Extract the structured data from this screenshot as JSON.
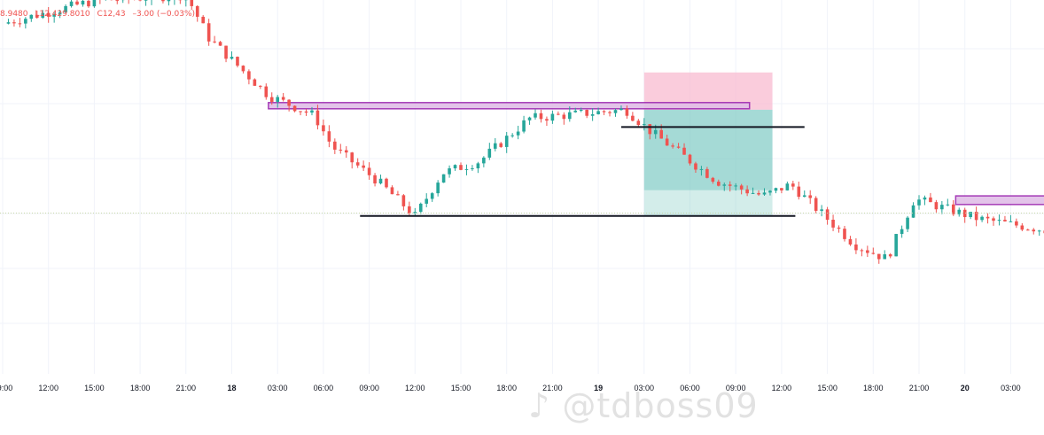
{
  "ohlc_legend": {
    "open": "8.9480",
    "low": "L12,429.8010",
    "close": "C12,43",
    "tail": "–3.00 (−0.03%)",
    "color": "#ef5350"
  },
  "watermark": {
    "text": "@tdboss09",
    "icon": "tiktok-icon"
  },
  "chart_data": {
    "type": "candlestick",
    "title": "",
    "xlabel": "",
    "ylabel": "",
    "grid": true,
    "colors": {
      "up": "#26a69a",
      "down": "#ef5350",
      "zone_fill": "#e1bee7",
      "zone_stroke": "#9c27b0",
      "stop": "#f8bbd0",
      "target": "#80cbc4",
      "level": "#5b8bd9"
    },
    "x_ticks": [
      "09:00",
      "12:00",
      "15:00",
      "18:00",
      "21:00",
      "18",
      "03:00",
      "06:00",
      "09:00",
      "12:00",
      "15:00",
      "18:00",
      "21:00",
      "19",
      "03:00",
      "06:00",
      "09:00",
      "12:00",
      "15:00",
      "18:00",
      "21:00",
      "20",
      "03:00",
      "06:00"
    ],
    "day_ticks": [
      "18",
      "19",
      "20"
    ],
    "price_path": [
      {
        "t": 0.0,
        "p": 12460
      },
      {
        "t": 2.0,
        "p": 12468
      },
      {
        "t": 4.0,
        "p": 12470
      },
      {
        "t": 4.5,
        "p": 12455
      },
      {
        "t": 5.8,
        "p": 12435
      },
      {
        "t": 6.8,
        "p": 12428
      },
      {
        "t": 7.2,
        "p": 12417
      },
      {
        "t": 8.2,
        "p": 12405
      },
      {
        "t": 9.0,
        "p": 12393
      },
      {
        "t": 9.6,
        "p": 12408
      },
      {
        "t": 10.4,
        "p": 12412
      },
      {
        "t": 11.5,
        "p": 12427
      },
      {
        "t": 13.6,
        "p": 12430
      },
      {
        "t": 14.1,
        "p": 12423
      },
      {
        "t": 15.6,
        "p": 12405
      },
      {
        "t": 16.6,
        "p": 12400
      },
      {
        "t": 17.2,
        "p": 12404
      },
      {
        "t": 18.6,
        "p": 12383
      },
      {
        "t": 19.3,
        "p": 12378
      },
      {
        "t": 19.9,
        "p": 12399
      },
      {
        "t": 21.3,
        "p": 12392
      },
      {
        "t": 22.8,
        "p": 12388
      },
      {
        "t": 23.5,
        "p": 12370
      },
      {
        "t": 25.2,
        "p": 12362
      },
      {
        "t": 27.2,
        "p": 12367
      },
      {
        "t": 28.7,
        "p": 12358
      },
      {
        "t": 30.5,
        "p": 12368
      },
      {
        "t": 32.6,
        "p": 12375
      },
      {
        "t": 33.6,
        "p": 12384
      },
      {
        "t": 34.8,
        "p": 12400
      },
      {
        "t": 35.6,
        "p": 12395
      },
      {
        "t": 36.2,
        "p": 12390
      },
      {
        "t": 36.6,
        "p": 12391
      }
    ],
    "drawings": {
      "supply_zones": [
        {
          "t1": 5.8,
          "t2": 16.3,
          "p_low": 12431,
          "p_high": 12432.5
        },
        {
          "t1": 20.8,
          "t2": 39.3,
          "p_low": 12397,
          "p_high": 12400
        }
      ],
      "lines": [
        {
          "t1": 13.5,
          "t2": 17.5,
          "p": 12424,
          "color": "#131722"
        },
        {
          "t1": 7.8,
          "t2": 17.3,
          "p": 12393,
          "color": "#131722"
        },
        {
          "t1": 33.4,
          "t2": 44.0,
          "p": 12412,
          "color": "#5b8bd9"
        },
        {
          "t1": 29.3,
          "t2": 44.0,
          "p": 12362,
          "color": "#5b8bd9"
        }
      ],
      "positions": [
        {
          "t1": 14.0,
          "t2": 16.8,
          "entry": 12430,
          "stop": 12443,
          "target": 12393,
          "filled_to": 12402
        },
        {
          "t1": 33.7,
          "t2": 36.9,
          "entry": 12392,
          "stop": 12412,
          "target": 12362,
          "filled_to": 12388
        }
      ],
      "last_price_line": 12394
    },
    "y_range": [
      12338,
      12467
    ]
  }
}
